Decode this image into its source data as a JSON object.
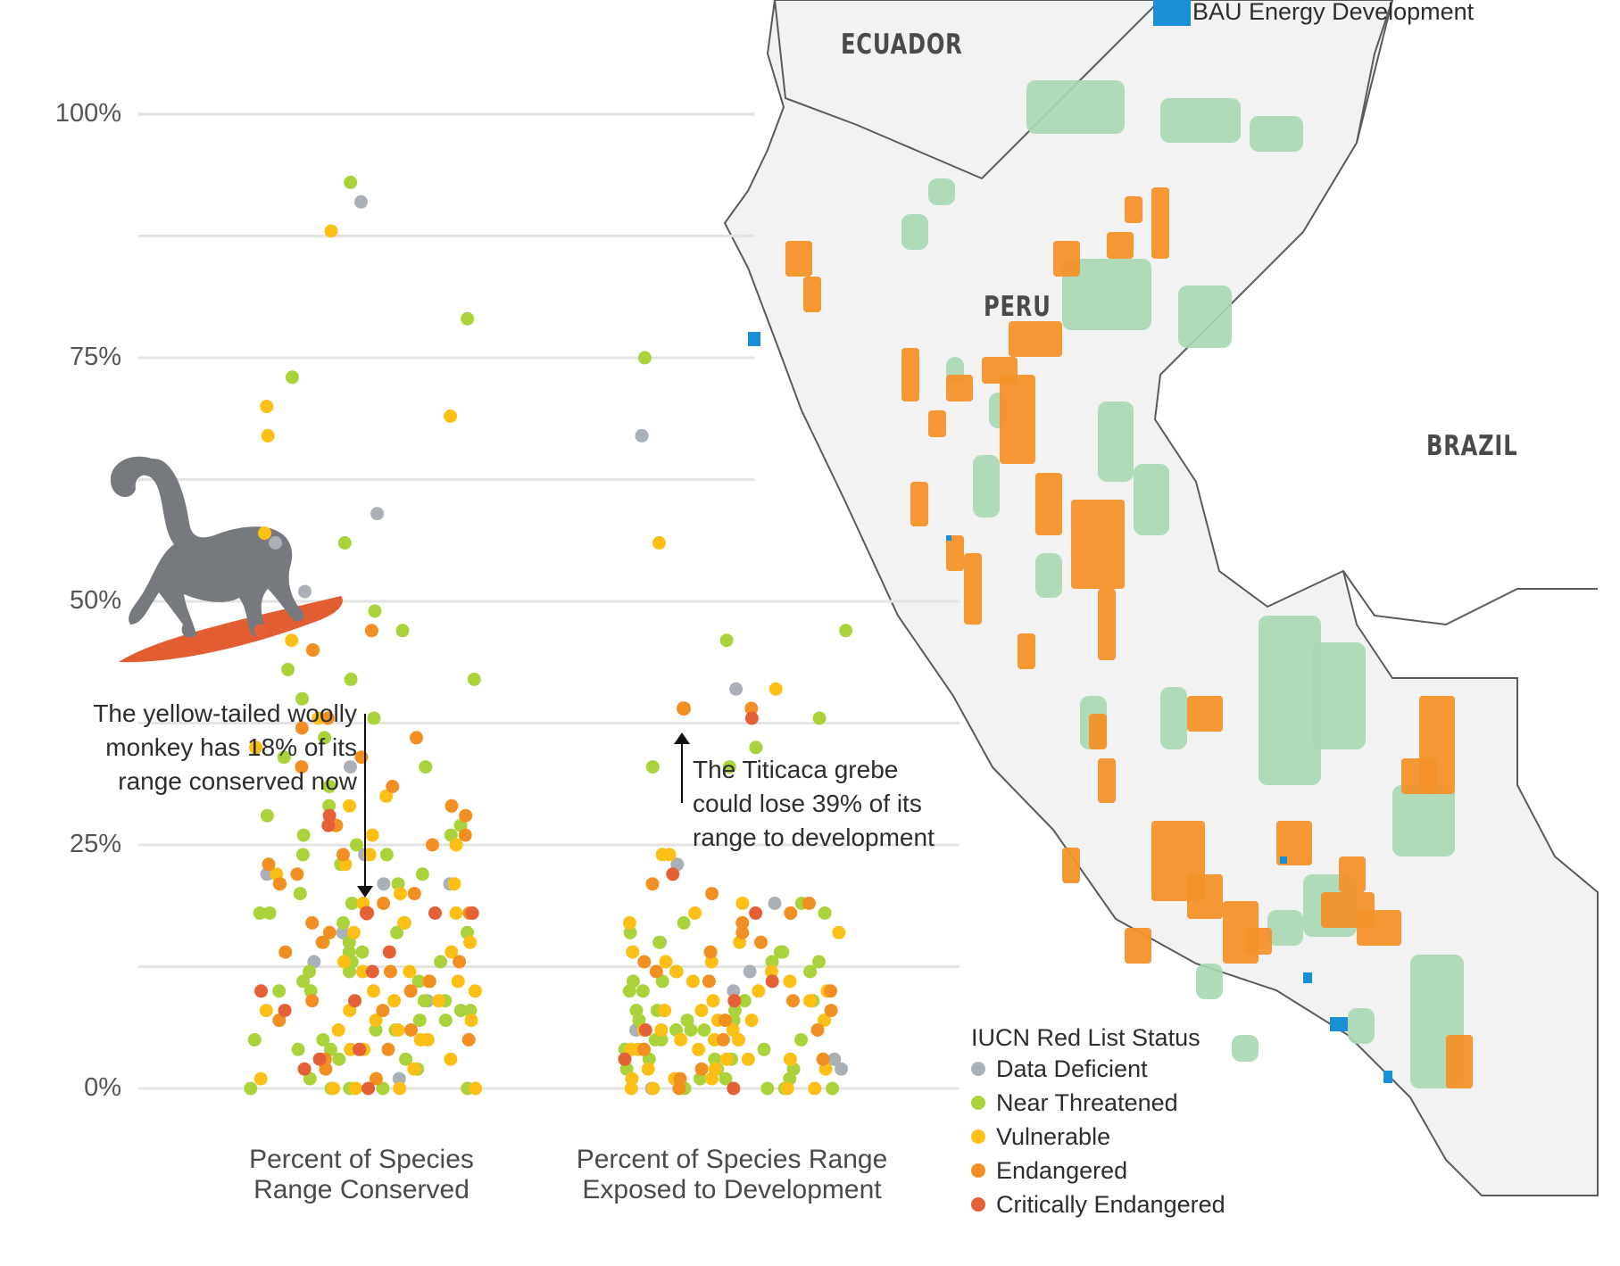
{
  "map": {
    "countries": [
      "ECUADOR",
      "PERU",
      "BRAZIL"
    ],
    "legend_bau_label": "BAU Energy Development",
    "colors": {
      "protected_area": "#a8d8b2",
      "development": "#f2922a",
      "bau_energy": "#1b8fd6",
      "land": "#f2f2f2",
      "border": "#5a5a5a"
    }
  },
  "status_legend": {
    "title": "IUCN Red List Status",
    "items": [
      {
        "label": "Data Deficient",
        "color": "#aab0b7"
      },
      {
        "label": "Near Threatened",
        "color": "#a9d23b"
      },
      {
        "label": "Vulnerable",
        "color": "#fbbf16"
      },
      {
        "label": "Endangered",
        "color": "#f18f22"
      },
      {
        "label": "Critically Endangered",
        "color": "#e55f37"
      }
    ]
  },
  "annotations": {
    "monkey": "The yellow-tailed woolly\nmonkey has 18% of its\nrange conserved now",
    "grebe": "The Titicaca grebe\ncould lose 39% of its\nrange to development"
  },
  "chart_data": {
    "type": "scatter",
    "categories": [
      "Percent of Species\nRange Conserved",
      "Percent of Species Range\nExposed to Development"
    ],
    "y_tick_labels": [
      "0%",
      "25%",
      "50%",
      "75%",
      "100%"
    ],
    "ylim": [
      0,
      100
    ],
    "grid": true,
    "notable_points": [
      {
        "category": 0,
        "value": 18,
        "species": "yellow-tailed woolly monkey"
      },
      {
        "category": 1,
        "value": 39,
        "species": "Titicaca grebe"
      }
    ],
    "series": [
      {
        "name": "Data Deficient",
        "color": "#aab0b7",
        "conserved": [
          91,
          59,
          56,
          51,
          33,
          24,
          22,
          21,
          21,
          16,
          13,
          9,
          1
        ],
        "exposed": [
          67,
          41,
          23,
          19,
          15,
          12,
          10,
          8,
          6,
          3,
          2,
          0
        ]
      },
      {
        "name": "Near Threatened",
        "color": "#a9d23b",
        "conserved": [
          93,
          79,
          73,
          56,
          49,
          47,
          45,
          43,
          42,
          42,
          40,
          38,
          36,
          34,
          33,
          31,
          29,
          28,
          27,
          26,
          26,
          25,
          24,
          24,
          23,
          22,
          21,
          21,
          20,
          19,
          18,
          18,
          17,
          17,
          16,
          16,
          15,
          15,
          14,
          14,
          13,
          13,
          12,
          12,
          11,
          11,
          10,
          10,
          9,
          9,
          8,
          8,
          7,
          7,
          6,
          6,
          5,
          5,
          4,
          4,
          3,
          3,
          2,
          1,
          0,
          0,
          0,
          0,
          0
        ],
        "exposed": [
          75,
          47,
          46,
          38,
          35,
          33,
          33,
          19,
          18,
          17,
          16,
          15,
          14,
          14,
          13,
          13,
          12,
          12,
          11,
          11,
          10,
          10,
          9,
          9,
          9,
          8,
          8,
          8,
          7,
          7,
          7,
          6,
          6,
          6,
          5,
          5,
          5,
          4,
          4,
          4,
          3,
          3,
          3,
          2,
          2,
          2,
          1,
          1,
          1,
          0,
          0,
          0,
          0
        ]
      },
      {
        "name": "Vulnerable",
        "color": "#fbbf16",
        "conserved": [
          88,
          70,
          69,
          67,
          57,
          46,
          38,
          35,
          30,
          29,
          27,
          26,
          25,
          24,
          23,
          22,
          21,
          20,
          19,
          18,
          17,
          16,
          15,
          14,
          13,
          12,
          12,
          11,
          11,
          10,
          10,
          9,
          9,
          8,
          8,
          7,
          7,
          6,
          6,
          5,
          5,
          4,
          4,
          3,
          2,
          1,
          0,
          0,
          0,
          0
        ],
        "exposed": [
          56,
          41,
          24,
          24,
          19,
          18,
          17,
          16,
          15,
          14,
          13,
          13,
          12,
          12,
          11,
          11,
          10,
          10,
          9,
          9,
          8,
          8,
          7,
          7,
          7,
          6,
          6,
          6,
          5,
          5,
          5,
          4,
          4,
          4,
          3,
          3,
          3,
          2,
          2,
          2,
          1,
          1,
          1,
          0,
          0,
          0,
          0
        ]
      },
      {
        "name": "Endangered",
        "color": "#f18f22",
        "conserved": [
          47,
          45,
          38,
          37,
          36,
          34,
          33,
          31,
          29,
          28,
          27,
          26,
          25,
          24,
          23,
          22,
          21,
          20,
          19,
          18,
          17,
          16,
          15,
          14,
          13,
          12,
          11,
          10,
          9,
          8,
          7,
          6,
          5,
          4,
          3,
          2,
          1
        ],
        "exposed": [
          39,
          21,
          20,
          19,
          18,
          17,
          16,
          15,
          14,
          13,
          12,
          11,
          10,
          9,
          8,
          7,
          6,
          5,
          4,
          3,
          2,
          1,
          0
        ]
      },
      {
        "name": "Critically Endangered",
        "color": "#e55f37",
        "conserved": [
          47,
          28,
          27,
          18,
          18,
          14,
          12,
          10,
          9,
          8,
          4,
          3,
          2,
          0
        ],
        "exposed": [
          38,
          22,
          18,
          11,
          9,
          6,
          3,
          0
        ]
      }
    ]
  }
}
